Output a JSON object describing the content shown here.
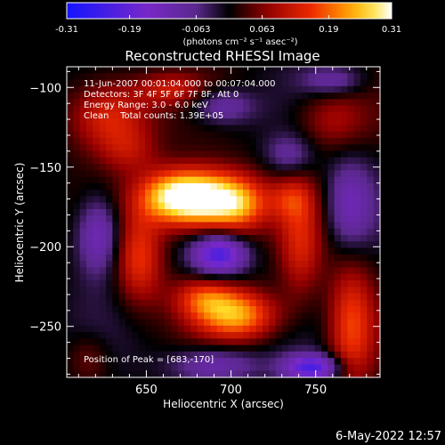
{
  "chart_data": {
    "type": "heatmap",
    "title": "Reconstructed RHESSI Image",
    "xlabel": "Heliocentric X (arcsec)",
    "ylabel": "Heliocentric Y (arcsec)",
    "xlim": [
      603,
      788
    ],
    "ylim": [
      -282,
      -87
    ],
    "x_ticks": [
      650,
      700,
      750
    ],
    "y_ticks": [
      -100,
      -150,
      -200,
      -250
    ],
    "colorbar": {
      "min": -0.31,
      "max": 0.31,
      "ticks": [
        -0.31,
        -0.19,
        -0.063,
        0.063,
        0.19,
        0.31
      ],
      "tick_labels": [
        "-0.31",
        "-0.19",
        "-0.063",
        "0.063",
        "0.19",
        "0.31"
      ],
      "unit_label": "(photons cm⁻² s⁻¹ asec⁻²)",
      "colormap": "blue-purple-black-red-orange-yellow-white"
    },
    "annotations": {
      "time_range": "11-Jun-2007 00:01:04.000 to 00:07:04.000",
      "detectors": "Detectors: 3F 4F 5F 6F 7F 8F, Att 0",
      "energy_range": "Energy Range: 3.0 - 6.0 keV",
      "clean_counts": "Clean    Total counts: 1.39E+05",
      "peak_position": "Position of Peak = [683,-170]"
    },
    "peak": {
      "x": 683,
      "y": -170
    },
    "sources": [
      {
        "x": 683,
        "y": -170,
        "sx": 20,
        "sy": 13,
        "amp": 0.34
      },
      {
        "x": 664,
        "y": -168,
        "sx": 14,
        "sy": 11,
        "amp": 0.13
      },
      {
        "x": 705,
        "y": -175,
        "sx": 12,
        "sy": 12,
        "amp": 0.12
      },
      {
        "x": 704,
        "y": -243,
        "sx": 17,
        "sy": 11,
        "amp": 0.22
      },
      {
        "x": 684,
        "y": -232,
        "sx": 13,
        "sy": 9,
        "amp": 0.13
      },
      {
        "x": 646,
        "y": -208,
        "sx": 10,
        "sy": 20,
        "amp": 0.15
      },
      {
        "x": 741,
        "y": -198,
        "sx": 9,
        "sy": 26,
        "amp": 0.12
      },
      {
        "x": 735,
        "y": -170,
        "sx": 9,
        "sy": 9,
        "amp": 0.08
      },
      {
        "x": 628,
        "y": -118,
        "sx": 17,
        "sy": 16,
        "amp": 0.16
      },
      {
        "x": 640,
        "y": -140,
        "sx": 12,
        "sy": 10,
        "amp": 0.07
      },
      {
        "x": 760,
        "y": -120,
        "sx": 15,
        "sy": 14,
        "amp": 0.1
      },
      {
        "x": 771,
        "y": -250,
        "sx": 10,
        "sy": 28,
        "amp": 0.17
      },
      {
        "x": 664,
        "y": -101,
        "sx": 14,
        "sy": 7,
        "amp": 0.1
      },
      {
        "x": 616,
        "y": -270,
        "sx": 9,
        "sy": 11,
        "amp": 0.06
      },
      {
        "x": 693,
        "y": -205,
        "sx": 11,
        "sy": 9,
        "amp": -0.22
      },
      {
        "x": 622,
        "y": -193,
        "sx": 9,
        "sy": 17,
        "amp": -0.15
      },
      {
        "x": 735,
        "y": -142,
        "sx": 10,
        "sy": 9,
        "amp": -0.09
      },
      {
        "x": 770,
        "y": -174,
        "sx": 10,
        "sy": 20,
        "amp": -0.13
      },
      {
        "x": 690,
        "y": -274,
        "sx": 18,
        "sy": 8,
        "amp": -0.12
      },
      {
        "x": 748,
        "y": -276,
        "sx": 12,
        "sy": 6,
        "amp": -0.22
      },
      {
        "x": 695,
        "y": -112,
        "sx": 13,
        "sy": 8,
        "amp": -0.11
      },
      {
        "x": 760,
        "y": -96,
        "sx": 12,
        "sy": 6,
        "amp": -0.09
      }
    ]
  },
  "footer": {
    "date_stamp": "6-May-2022 12:57"
  }
}
